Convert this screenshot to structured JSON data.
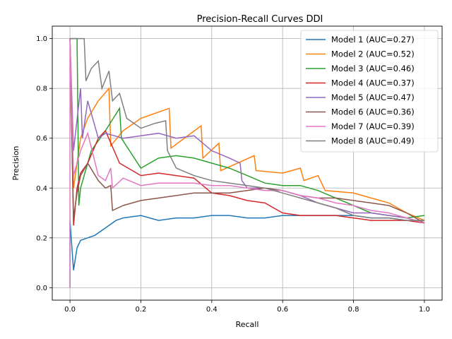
{
  "chart_data": {
    "type": "line",
    "title": "Precision-Recall Curves DDI",
    "xlabel": "Recall",
    "ylabel": "Precision",
    "xlim": [
      -0.05,
      1.05
    ],
    "ylim": [
      -0.05,
      1.05
    ],
    "xticks": [
      "0.0",
      "0.2",
      "0.4",
      "0.6",
      "0.8",
      "1.0"
    ],
    "yticks": [
      "0.0",
      "0.2",
      "0.4",
      "0.6",
      "0.8",
      "1.0"
    ],
    "grid": true,
    "legend_position": "top-right",
    "series": [
      {
        "name": "Model 1 (AUC=0.27)",
        "color": "#1f77b4",
        "x": [
          0.0,
          0.0,
          0.01,
          0.02,
          0.03,
          0.05,
          0.07,
          0.1,
          0.13,
          0.15,
          0.2,
          0.25,
          0.3,
          0.35,
          0.4,
          0.45,
          0.5,
          0.55,
          0.6,
          0.65,
          0.7,
          0.75,
          0.8,
          0.85,
          0.9,
          0.95,
          1.0
        ],
        "y": [
          0.0,
          0.27,
          0.07,
          0.16,
          0.19,
          0.2,
          0.21,
          0.24,
          0.27,
          0.28,
          0.29,
          0.27,
          0.28,
          0.28,
          0.29,
          0.29,
          0.28,
          0.28,
          0.29,
          0.29,
          0.29,
          0.29,
          0.29,
          0.28,
          0.28,
          0.27,
          0.27
        ]
      },
      {
        "name": "Model 2 (AUC=0.52)",
        "color": "#ff7f0e",
        "x": [
          0.0,
          0.01,
          0.03,
          0.05,
          0.08,
          0.11,
          0.115,
          0.15,
          0.2,
          0.28,
          0.285,
          0.37,
          0.375,
          0.42,
          0.425,
          0.52,
          0.525,
          0.6,
          0.65,
          0.66,
          0.7,
          0.72,
          0.8,
          0.85,
          0.9,
          0.95,
          1.0
        ],
        "y": [
          1.0,
          0.4,
          0.6,
          0.68,
          0.75,
          0.8,
          0.57,
          0.63,
          0.68,
          0.72,
          0.56,
          0.65,
          0.52,
          0.58,
          0.47,
          0.53,
          0.47,
          0.46,
          0.48,
          0.43,
          0.45,
          0.39,
          0.38,
          0.36,
          0.34,
          0.3,
          0.27
        ]
      },
      {
        "name": "Model 3 (AUC=0.46)",
        "color": "#2ca02c",
        "x": [
          0.0,
          0.02,
          0.025,
          0.03,
          0.06,
          0.1,
          0.14,
          0.145,
          0.2,
          0.25,
          0.3,
          0.35,
          0.4,
          0.45,
          0.5,
          0.55,
          0.6,
          0.65,
          0.7,
          0.75,
          0.8,
          0.85,
          0.9,
          0.95,
          1.0
        ],
        "y": [
          1.0,
          1.0,
          0.33,
          0.4,
          0.55,
          0.63,
          0.72,
          0.6,
          0.48,
          0.52,
          0.53,
          0.52,
          0.5,
          0.48,
          0.45,
          0.42,
          0.41,
          0.41,
          0.39,
          0.36,
          0.33,
          0.3,
          0.29,
          0.28,
          0.29
        ]
      },
      {
        "name": "Model 4 (AUC=0.37)",
        "color": "#d62728",
        "x": [
          0.0,
          0.01,
          0.02,
          0.03,
          0.05,
          0.08,
          0.1,
          0.14,
          0.2,
          0.25,
          0.3,
          0.35,
          0.4,
          0.45,
          0.5,
          0.55,
          0.6,
          0.65,
          0.7,
          0.75,
          0.8,
          0.85,
          0.9,
          0.95,
          1.0
        ],
        "y": [
          1.0,
          0.25,
          0.4,
          0.46,
          0.5,
          0.6,
          0.63,
          0.5,
          0.45,
          0.46,
          0.45,
          0.44,
          0.38,
          0.37,
          0.35,
          0.34,
          0.3,
          0.29,
          0.29,
          0.29,
          0.28,
          0.27,
          0.27,
          0.27,
          0.26
        ]
      },
      {
        "name": "Model 5 (AUC=0.47)",
        "color": "#9467bd",
        "x": [
          0.0,
          0.01,
          0.03,
          0.035,
          0.05,
          0.08,
          0.1,
          0.15,
          0.2,
          0.25,
          0.3,
          0.35,
          0.4,
          0.45,
          0.48,
          0.485,
          0.5,
          0.55,
          0.6,
          0.65,
          0.7,
          0.75,
          0.8,
          0.85,
          0.9,
          0.95,
          1.0
        ],
        "y": [
          1.0,
          0.55,
          0.8,
          0.6,
          0.75,
          0.6,
          0.62,
          0.6,
          0.61,
          0.62,
          0.6,
          0.61,
          0.55,
          0.52,
          0.5,
          0.43,
          0.4,
          0.4,
          0.39,
          0.37,
          0.34,
          0.32,
          0.3,
          0.3,
          0.29,
          0.28,
          0.26
        ]
      },
      {
        "name": "Model 6 (AUC=0.36)",
        "color": "#8c564b",
        "x": [
          0.0,
          0.01,
          0.02,
          0.03,
          0.05,
          0.08,
          0.1,
          0.115,
          0.12,
          0.15,
          0.2,
          0.25,
          0.3,
          0.35,
          0.4,
          0.45,
          0.5,
          0.55,
          0.6,
          0.65,
          0.7,
          0.75,
          0.8,
          0.85,
          0.9,
          0.95,
          1.0
        ],
        "y": [
          1.0,
          0.28,
          0.38,
          0.45,
          0.5,
          0.43,
          0.4,
          0.41,
          0.31,
          0.33,
          0.35,
          0.36,
          0.37,
          0.38,
          0.38,
          0.38,
          0.39,
          0.4,
          0.39,
          0.37,
          0.36,
          0.36,
          0.35,
          0.34,
          0.33,
          0.3,
          0.26
        ]
      },
      {
        "name": "Model 7 (AUC=0.39)",
        "color": "#e377c2",
        "x": [
          0.0,
          0.0,
          0.01,
          0.03,
          0.05,
          0.08,
          0.1,
          0.115,
          0.12,
          0.15,
          0.2,
          0.25,
          0.3,
          0.35,
          0.4,
          0.45,
          0.5,
          0.55,
          0.6,
          0.65,
          0.7,
          0.75,
          0.8,
          0.85,
          0.9,
          0.95,
          1.0
        ],
        "y": [
          0.0,
          1.0,
          0.45,
          0.55,
          0.62,
          0.45,
          0.43,
          0.48,
          0.4,
          0.44,
          0.41,
          0.42,
          0.42,
          0.42,
          0.41,
          0.41,
          0.4,
          0.39,
          0.39,
          0.37,
          0.36,
          0.34,
          0.33,
          0.31,
          0.3,
          0.28,
          0.26
        ]
      },
      {
        "name": "Model 8 (AUC=0.49)",
        "color": "#7f7f7f",
        "x": [
          0.0,
          0.04,
          0.045,
          0.06,
          0.08,
          0.09,
          0.11,
          0.12,
          0.14,
          0.16,
          0.2,
          0.24,
          0.27,
          0.275,
          0.3,
          0.35,
          0.4,
          0.45,
          0.5,
          0.55,
          0.6,
          0.65,
          0.7,
          0.75,
          0.8,
          0.85,
          0.9,
          0.95,
          1.0
        ],
        "y": [
          1.0,
          1.0,
          0.83,
          0.88,
          0.91,
          0.8,
          0.87,
          0.75,
          0.78,
          0.68,
          0.64,
          0.66,
          0.67,
          0.55,
          0.48,
          0.45,
          0.43,
          0.42,
          0.41,
          0.4,
          0.38,
          0.36,
          0.34,
          0.32,
          0.29,
          0.28,
          0.28,
          0.27,
          0.27
        ]
      }
    ]
  }
}
